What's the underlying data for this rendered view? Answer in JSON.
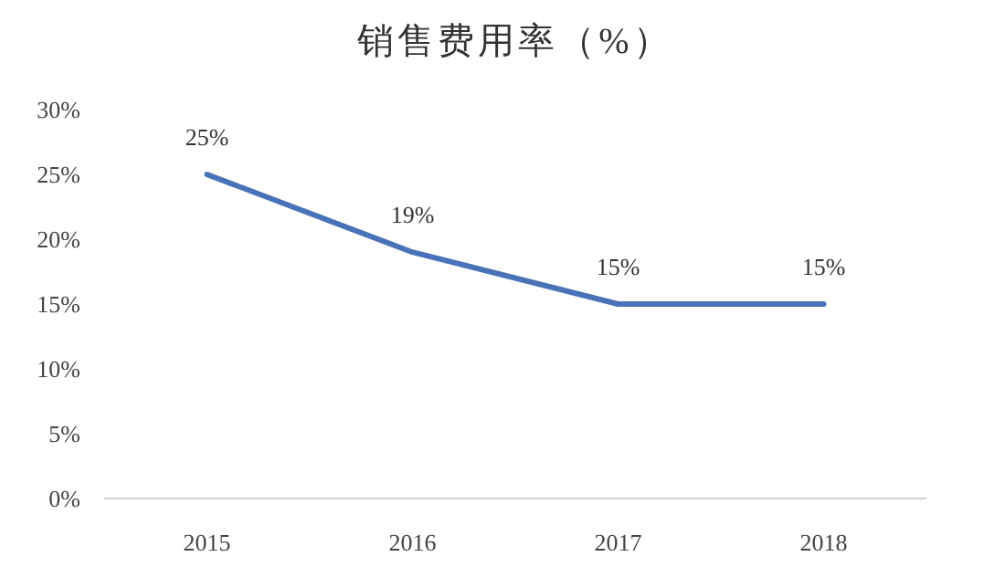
{
  "chart_data": {
    "type": "line",
    "title": "销售费用率（%）",
    "categories": [
      "2015",
      "2016",
      "2017",
      "2018"
    ],
    "series": [
      {
        "color": "#4a72b8",
        "values": [
          25,
          19,
          15,
          15
        ],
        "value_labels": [
          "25%",
          "19%",
          "15%",
          "15%"
        ]
      }
    ],
    "ylim": [
      0,
      30
    ],
    "yticks": [
      {
        "value": 0,
        "label": "0%"
      },
      {
        "value": 5,
        "label": "5%"
      },
      {
        "value": 10,
        "label": "10%"
      },
      {
        "value": 15,
        "label": "15%"
      },
      {
        "value": 20,
        "label": "20%"
      },
      {
        "value": 25,
        "label": "25%"
      },
      {
        "value": 30,
        "label": "30%"
      }
    ],
    "grid": false,
    "marker": "none",
    "line_style": "solid"
  }
}
